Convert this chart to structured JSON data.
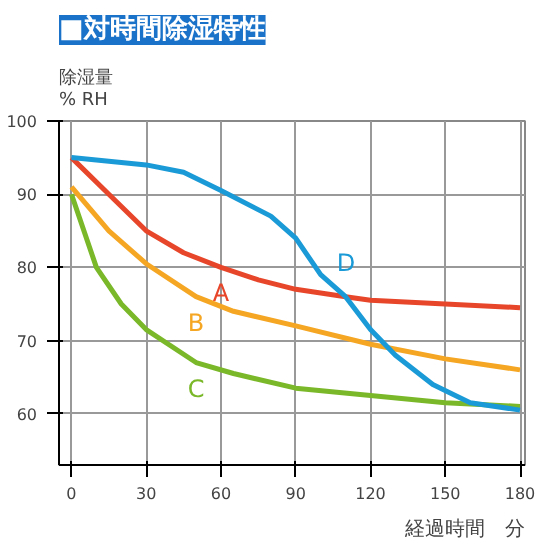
{
  "chart_data": {
    "type": "line",
    "title": "■対時間除湿特性",
    "ylabel": "除湿量\n% RH",
    "xlabel": "経過時間　分",
    "xlim": [
      -5,
      182
    ],
    "ylim": [
      53,
      100
    ],
    "xticks": [
      0,
      30,
      60,
      90,
      120,
      150,
      180
    ],
    "yticks": [
      60,
      70,
      80,
      90,
      100
    ],
    "grid": true,
    "marker": "none",
    "line_style": "solid",
    "series": [
      {
        "name": "A",
        "color": "#e8462a",
        "x": [
          0,
          15,
          30,
          45,
          60,
          75,
          90,
          110,
          120,
          150,
          180
        ],
        "values": [
          95,
          90,
          85,
          82,
          80,
          78.3,
          77,
          76,
          75.5,
          75,
          74.5
        ]
      },
      {
        "name": "B",
        "color": "#f5a623",
        "x": [
          0,
          15,
          30,
          50,
          65,
          90,
          120,
          150,
          180
        ],
        "values": [
          91,
          85,
          80.5,
          76,
          74,
          72,
          69.5,
          67.5,
          66
        ]
      },
      {
        "name": "C",
        "color": "#7ab829",
        "x": [
          0,
          10,
          20,
          30,
          50,
          65,
          90,
          120,
          150,
          180
        ],
        "values": [
          90,
          80,
          75,
          71.5,
          67,
          65.5,
          63.5,
          62.5,
          61.5,
          61
        ]
      },
      {
        "name": "D",
        "color": "#1a9ad6",
        "x": [
          0,
          30,
          45,
          60,
          80,
          90,
          100,
          110,
          120,
          130,
          145,
          160,
          180
        ],
        "values": [
          95,
          94,
          93,
          90.5,
          87,
          84,
          79,
          76,
          71.5,
          68,
          64,
          61.5,
          60.5
        ]
      }
    ]
  }
}
